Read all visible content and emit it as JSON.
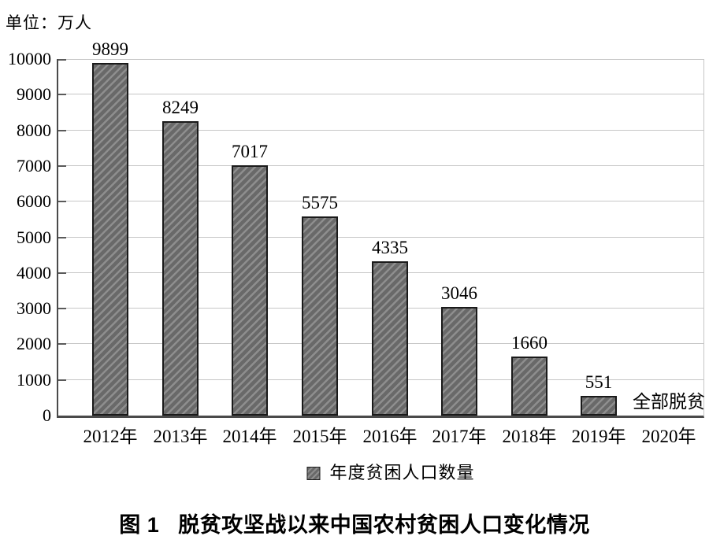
{
  "figure": {
    "unit_label": "单位：万人",
    "legend_label": "年度贫困人口数量",
    "caption_label": "图 1",
    "caption_title": "脱贫攻坚战以来中国农村贫困人口变化情况"
  },
  "chart_data": {
    "type": "bar",
    "title": "图1 脱贫攻坚战以来中国农村贫困人口变化情况",
    "ylabel": "单位：万人",
    "xlabel": "",
    "categories": [
      "2012年",
      "2013年",
      "2014年",
      "2015年",
      "2016年",
      "2017年",
      "2018年",
      "2019年",
      "2020年"
    ],
    "values": [
      9899,
      8249,
      7017,
      5575,
      4335,
      3046,
      1660,
      551,
      0
    ],
    "annotations": [
      {
        "category": "2020年",
        "text": "全部脱贫"
      }
    ],
    "legend": [
      "年度贫困人口数量"
    ],
    "legend_position": "bottom",
    "ylim": [
      0,
      10000
    ],
    "ytick_step": 1000,
    "grid": true,
    "bar_color": "#696969",
    "bar_hatch_color": "#8e8e8e",
    "bar_border_color": "#1a1a1a",
    "gridline_color": "#c6c6c6",
    "axis_color": "#4a4a4a",
    "tick_color": "#5a5a5a",
    "text_color": "#000000"
  }
}
